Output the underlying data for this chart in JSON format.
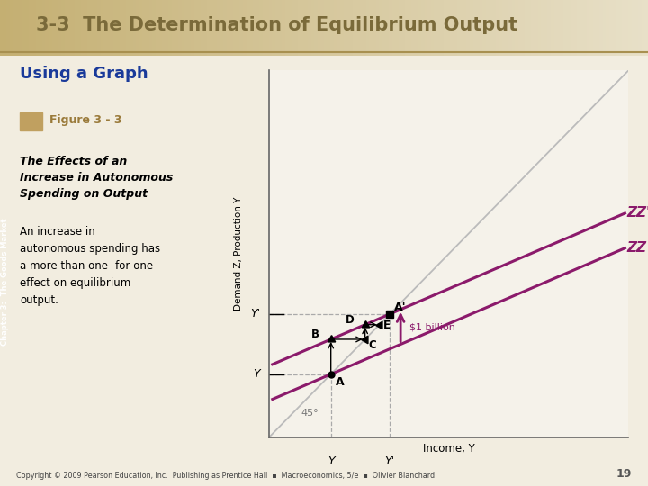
{
  "title": "3-3  The Determination of Equilibrium Output",
  "subtitle": "Using a Graph",
  "figure_label": "Figure 3 - 3",
  "figure_title": "The Effects of an\nIncrease in Autonomous\nSpending on Output",
  "figure_desc": "An increase in\nautonomous spending has\na more than one- for-one\neffect on equilibrium\noutput.",
  "chapter_label": "Chapter 3:  The Goods Market",
  "footer": "Copyright © 2009 Pearson Education, Inc.  Publishing as Prentice Hall  ▪  Macroeconomics, 5/e  ▪  Olivier Blanchard",
  "footer_page": "19",
  "header_bg_left": "#C4AF72",
  "header_bg_right": "#E8E0C8",
  "header_line_color": "#A89050",
  "sidebar_teal": "#4A7878",
  "sidebar_purple": "#7A2A6E",
  "title_color": "#7A6A3A",
  "body_bg": "#F2EDE0",
  "graph_bg": "#F5F2EA",
  "zz_color": "#8B1A6B",
  "arrow_color": "#8B1A6B",
  "diagonal_color": "#BBBBBB",
  "dashed_color": "#AAAAAA",
  "subtitle_color": "#1A3A9A",
  "fig_label_color": "#9A7A3A",
  "fig_square_color": "#C0A060",
  "zz_slope": 0.42,
  "zz_intercept": 0.1,
  "zzp_shift": 0.095,
  "xlabel": "Income, Y",
  "ylabel": "Demand Z, Production Y"
}
